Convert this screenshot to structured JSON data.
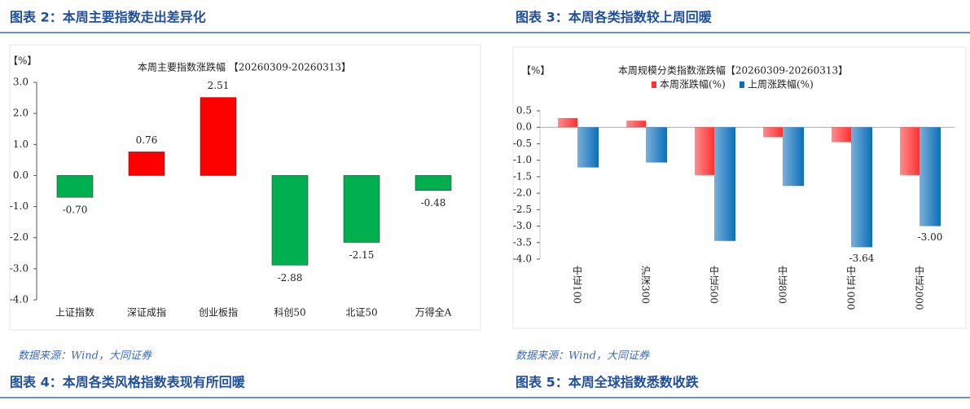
{
  "headers": [
    "图表 2：本周主要指数走出差异化",
    "图表 3：本周各类指数较上周回暖",
    "图表 4：本周各类风格指数表现有所回暖",
    "图表 5：本周全球指数悉数收跌"
  ],
  "sources": [
    "数据来源：Wind，大同证券",
    "数据来源：Wind，大同证券"
  ],
  "chart_data": [
    {
      "type": "bar",
      "title": "本周主要指数涨跌幅 【20260309-20260313】",
      "unit": "【%】",
      "categories": [
        "上证指数",
        "深证成指",
        "创业板指",
        "科创50",
        "北证50",
        "万得全A"
      ],
      "values": [
        -0.7,
        0.76,
        2.51,
        -2.88,
        -2.15,
        -0.48
      ],
      "value_labels": [
        "-0.70",
        "0.76",
        "2.51",
        "-2.88",
        "-2.15",
        "-0.48"
      ],
      "positive_color": "#ff0000",
      "negative_color": "#00b050",
      "ylim": [
        -4,
        3
      ],
      "yticks": [
        {
          "value": 3,
          "label": "3.0"
        },
        {
          "value": 2,
          "label": "2.0"
        },
        {
          "value": 1,
          "label": "1.0"
        },
        {
          "value": 0,
          "label": "0.0"
        },
        {
          "value": -1,
          "label": "-1.0"
        },
        {
          "value": -2,
          "label": "-2.0"
        },
        {
          "value": -3,
          "label": "-3.0"
        },
        {
          "value": -4,
          "label": "-4.0"
        }
      ]
    },
    {
      "type": "grouped_bar",
      "title": "本周规模分类指数涨跌幅【20260309-20260313】",
      "unit": "【%】",
      "categories": [
        "中证100",
        "沪深300",
        "中证500",
        "中证800",
        "中证1000",
        "中证2000"
      ],
      "series": [
        {
          "name": "本周涨跌幅(%)",
          "color": "#ff3030",
          "values": [
            0.28,
            0.2,
            -1.45,
            -0.3,
            -0.45,
            -1.45
          ],
          "value_labels": [
            null,
            null,
            null,
            null,
            null,
            null
          ]
        },
        {
          "name": "上周涨跌幅(%)",
          "color": "#0b6fba",
          "values": [
            -1.22,
            -1.07,
            -3.45,
            -1.78,
            -3.64,
            -3.0
          ],
          "value_labels": [
            null,
            null,
            null,
            null,
            "-3.64",
            "-3.00"
          ]
        }
      ],
      "ylim": [
        -4,
        0.5
      ],
      "yticks": [
        0.5,
        {
          "value": 0,
          "label": "0.0"
        },
        -0.5,
        {
          "value": -1,
          "label": "-1.0"
        },
        -1.5,
        {
          "value": -2,
          "label": "-2.0"
        },
        -2.5,
        {
          "value": -3,
          "label": "-3.0"
        },
        -3.5,
        {
          "value": -4,
          "label": "-4.0"
        }
      ]
    }
  ]
}
